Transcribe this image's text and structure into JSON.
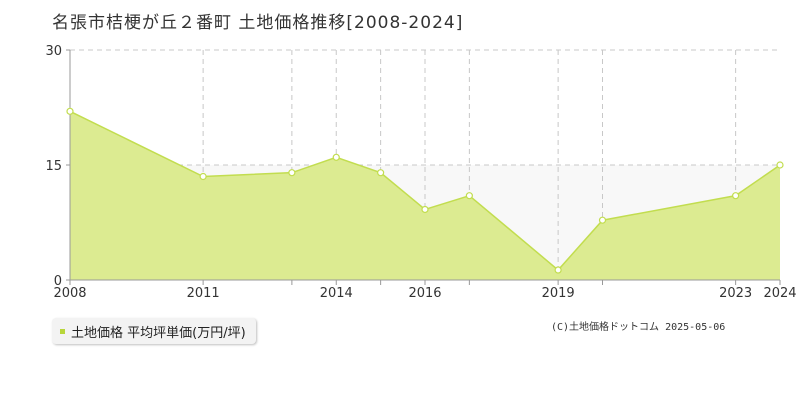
{
  "title": "名張市桔梗が丘２番町 土地価格推移[2008-2024]",
  "legend_label": "土地価格 平均坪単価(万円/坪)",
  "credit": "(C)土地価格ドットコム 2025-05-06",
  "colors": {
    "line": "#c2dd4f",
    "fill": "#dceb91",
    "grid": "#c8c8c8",
    "axis": "#999999",
    "marker_fill": "#ffffff"
  },
  "chart_data": {
    "type": "area",
    "title": "名張市桔梗が丘２番町 土地価格推移[2008-2024]",
    "xlabel": "",
    "ylabel": "",
    "x": [
      2008,
      2011,
      2013,
      2014,
      2015,
      2016,
      2017,
      2019,
      2020,
      2023,
      2024
    ],
    "x_tick_labels": [
      "2008",
      "2011",
      "2014",
      "2016",
      "2019",
      "2023",
      "2024"
    ],
    "series": [
      {
        "name": "土地価格 平均坪単価(万円/坪)",
        "values": [
          22,
          13.5,
          14,
          16,
          14,
          9.2,
          11,
          1.3,
          7.8,
          11,
          15
        ]
      }
    ],
    "y_ticks": [
      0,
      15,
      30
    ],
    "ylim": [
      0,
      30
    ],
    "grid": true
  }
}
